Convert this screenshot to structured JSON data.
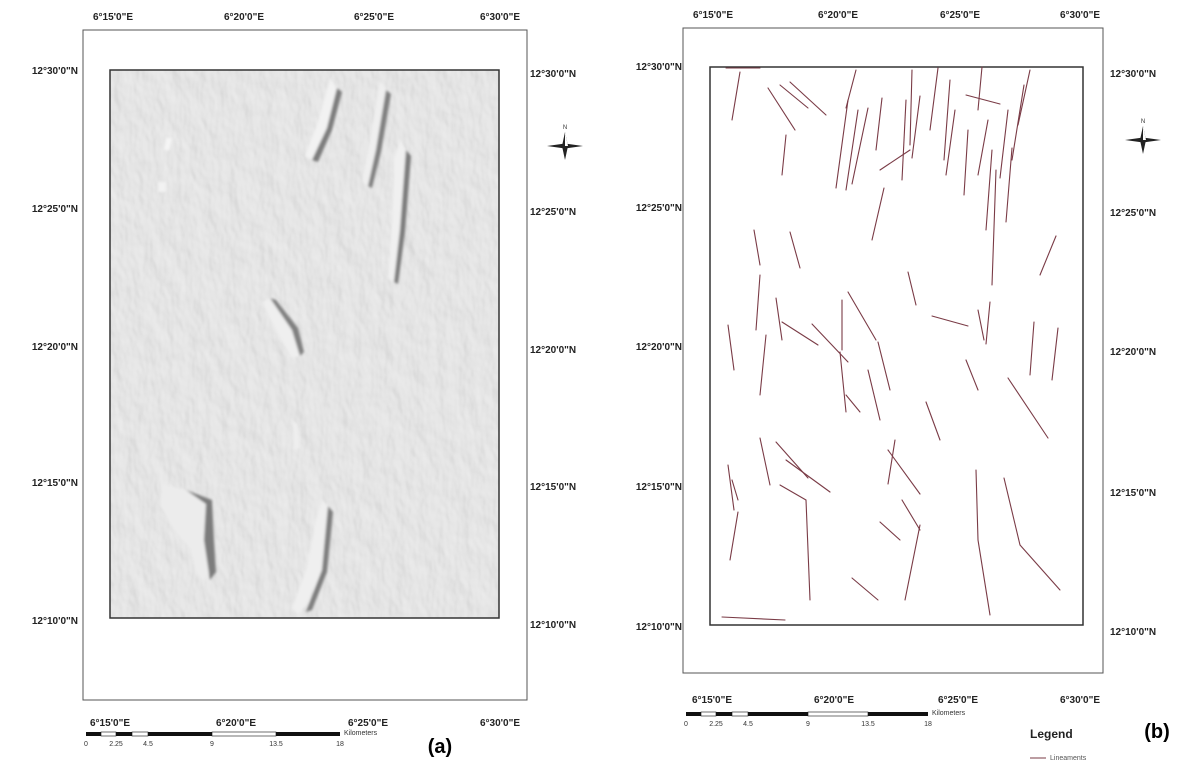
{
  "panels": [
    {
      "tag": "(a)",
      "top_ticks": [
        "6°15'0\"E",
        "6°20'0\"E",
        "6°25'0\"E",
        "6°30'0\"E"
      ],
      "bottom_ticks": [
        "6°15'0\"E",
        "6°20'0\"E",
        "6°25'0\"E",
        "6°30'0\"E"
      ],
      "left_ticks": [
        "12°30'0\"N",
        "12°25'0\"N",
        "12°20'0\"N",
        "12°15'0\"N",
        "12°10'0\"N"
      ],
      "right_ticks": [
        "12°30'0\"N",
        "12°25'0\"N",
        "12°20'0\"N",
        "12°15'0\"N",
        "12°10'0\"N"
      ],
      "north_label": "N",
      "scale_labels": [
        "0",
        "2.25",
        "4.5",
        "9",
        "13.5",
        "18"
      ],
      "scale_unit": "Kilometers",
      "content": "hillshade"
    },
    {
      "tag": "(b)",
      "top_ticks": [
        "6°15'0\"E",
        "6°20'0\"E",
        "6°25'0\"E",
        "6°30'0\"E"
      ],
      "bottom_ticks": [
        "6°15'0\"E",
        "6°20'0\"E",
        "6°25'0\"E",
        "6°30'0\"E"
      ],
      "left_ticks": [
        "12°30'0\"N",
        "12°25'0\"N",
        "12°20'0\"N",
        "12°15'0\"N",
        "12°10'0\"N"
      ],
      "right_ticks": [
        "12°30'0\"N",
        "12°25'0\"N",
        "12°20'0\"N",
        "12°15'0\"N",
        "12°10'0\"N"
      ],
      "north_label": "N",
      "scale_labels": [
        "0",
        "2.25",
        "4.5",
        "9",
        "13.5",
        "18"
      ],
      "scale_unit": "Kilometers",
      "content": "lineaments",
      "legend": {
        "title": "Legend",
        "item": "Lineaments"
      }
    }
  ],
  "colors": {
    "hillshade_base": "#c4c4c4",
    "lineament": "#7a3b46",
    "frame": "#333333"
  }
}
